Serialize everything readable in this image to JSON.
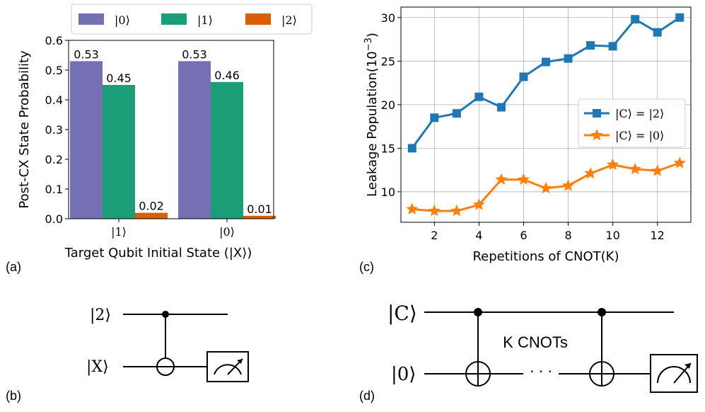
{
  "chart_data": [
    {
      "panel": "(a)",
      "type": "bar",
      "categories": [
        "|1⟩",
        "|0⟩"
      ],
      "series": [
        {
          "name": "|0⟩",
          "color": "#7570b3",
          "values": [
            0.53,
            0.53
          ],
          "labels": [
            "0.53",
            "0.53"
          ]
        },
        {
          "name": "|1⟩",
          "color": "#1b9e77",
          "values": [
            0.45,
            0.46
          ],
          "labels": [
            "0.45",
            "0.46"
          ]
        },
        {
          "name": "|2⟩",
          "color": "#d95f02",
          "values": [
            0.02,
            0.01
          ],
          "labels": [
            "0.02",
            "0.01"
          ]
        }
      ],
      "xlabel": "Target Qubit Initial State (|X⟩)",
      "ylabel": "Post-CX State Probability",
      "ylim": [
        0,
        0.6
      ],
      "yticks": [
        "0.0",
        "0.1",
        "0.2",
        "0.3",
        "0.4",
        "0.5",
        "0.6"
      ],
      "legend": "top"
    },
    {
      "panel": "(c)",
      "type": "line",
      "x": [
        1,
        2,
        3,
        4,
        5,
        6,
        7,
        8,
        9,
        10,
        11,
        12,
        13
      ],
      "series": [
        {
          "name": "|C⟩ = |2⟩",
          "color": "#1f77b4",
          "marker": "square",
          "values": [
            15.0,
            18.5,
            19.0,
            20.9,
            19.7,
            23.2,
            24.9,
            25.3,
            26.8,
            26.7,
            29.8,
            28.3,
            30.0
          ]
        },
        {
          "name": "|C⟩ = |0⟩",
          "color": "#ff7f0e",
          "marker": "star",
          "values": [
            8.0,
            7.8,
            7.8,
            8.5,
            11.4,
            11.4,
            10.4,
            10.7,
            12.1,
            13.1,
            12.6,
            12.4,
            13.3
          ]
        }
      ],
      "xlabel": "Repetitions of CNOT(K)",
      "ylabel": "Leakage Population(10",
      "ylabel_exp": "−3",
      "ylabel_close": ")",
      "xlim": [
        0.5,
        13.5
      ],
      "ylim": [
        6.5,
        31.2
      ],
      "xticks": [
        "2",
        "4",
        "6",
        "8",
        "10",
        "12"
      ],
      "yticks": [
        "10",
        "15",
        "20",
        "25",
        "30"
      ],
      "grid": true,
      "legend": "center-right"
    }
  ],
  "circuits": {
    "b": {
      "panel": "(b)",
      "control": "|2⟩",
      "target": "|X⟩"
    },
    "d": {
      "panel": "(d)",
      "control": "|C⟩",
      "target": "|0⟩",
      "annotation": "K CNOTs",
      "dots": "· · ·"
    }
  }
}
